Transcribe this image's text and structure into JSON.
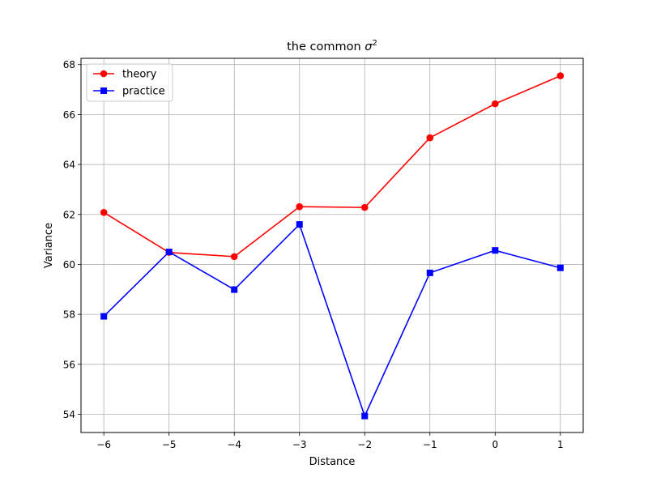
{
  "chart_data": {
    "type": "line",
    "title_prefix": "the common ",
    "title_symbol": "σ",
    "title_superscript": "2",
    "xlabel": "Distance",
    "ylabel": "Variance",
    "x": [
      -6,
      -5,
      -4,
      -3,
      -2,
      -1,
      0,
      1
    ],
    "xlim": [
      -6.35,
      1.35
    ],
    "ylim": [
      53.27,
      68.25
    ],
    "xticks": [
      -6,
      -5,
      -4,
      -3,
      -2,
      -1,
      0,
      1
    ],
    "xtick_labels": [
      "−6",
      "−5",
      "−4",
      "−3",
      "−2",
      "−1",
      "0",
      "1"
    ],
    "yticks": [
      54,
      56,
      58,
      60,
      62,
      64,
      66,
      68
    ],
    "ytick_labels": [
      "54",
      "56",
      "58",
      "60",
      "62",
      "64",
      "66",
      "68"
    ],
    "grid": true,
    "legend_position": "upper-left",
    "series": [
      {
        "name": "theory",
        "color": "#ff0000",
        "marker": "circle",
        "values": [
          62.08,
          60.48,
          60.31,
          62.31,
          62.28,
          65.07,
          66.43,
          67.55
        ]
      },
      {
        "name": "practice",
        "color": "#0000ff",
        "marker": "square",
        "values": [
          57.92,
          60.5,
          58.99,
          61.6,
          53.93,
          59.66,
          60.56,
          59.86
        ]
      }
    ]
  }
}
